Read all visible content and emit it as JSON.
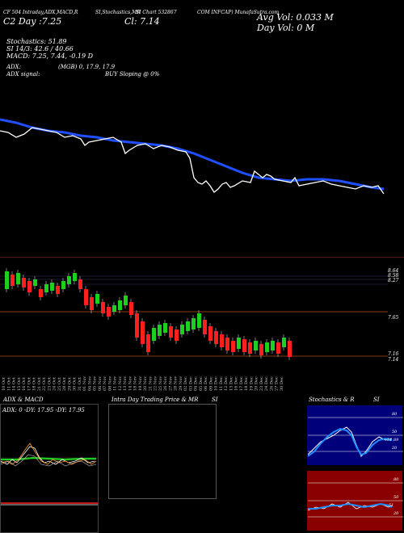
{
  "header": {
    "line1_a": "CF 504 Intraday,ADX,MACD,R",
    "line1_b": "SI,Stochastics,MR",
    "line1_c": "SI Chart 532867",
    "line1_d": "COM INFCAP) MunafaSutra.com",
    "line2_a": "C2 Day :7.25",
    "line2_b": "Cl: 7.14",
    "avg_vol": "Avg Vol: 0.033 M",
    "day_vol": "Day Vol: 0 M"
  },
  "indicators": {
    "stochastics": "Stochastics: 51.89",
    "si": "SI 14/3: 42.6 / 40.66",
    "macd": "MACD: 7.25, 7.44, -0.19 D",
    "adx": "ADX:",
    "adx_vals": "(MGB) 0, 17.9, 17.9",
    "adx_signal": "ADX signal:",
    "buy_selling": "BUY Sloping @ 0%"
  },
  "candle_price_labels": [
    "8.64",
    "8.58",
    "8.27",
    "7.65",
    "7.16",
    "7.14"
  ],
  "date_labels": [
    "10 Oct",
    "11 Oct",
    "14 Oct",
    "15 Oct",
    "16 Oct",
    "17 Oct",
    "18 Oct",
    "21 Oct",
    "22 Oct",
    "23 Oct",
    "24 Oct",
    "25 Oct",
    "28 Oct",
    "29 Oct",
    "30 Oct",
    "31 Oct",
    "01 Nov",
    "04 Nov",
    "05 Nov",
    "06 Nov",
    "07 Nov",
    "08 Nov",
    "11 Nov",
    "12 Nov",
    "13 Nov",
    "14 Nov",
    "18 Nov",
    "19 Nov",
    "20 Nov",
    "21 Nov",
    "22 Nov",
    "25 Nov",
    "26 Nov",
    "27 Nov",
    "28 Nov",
    "29 Nov",
    "02 Dec",
    "03 Dec",
    "04 Dec",
    "05 Dec",
    "06 Dec",
    "09 Dec",
    "10 Dec",
    "11 Dec",
    "12 Dec",
    "13 Dec",
    "16 Dec",
    "17 Dec",
    "18 Dec",
    "19 Dec",
    "20 Dec",
    "23 Dec",
    "24 Dec",
    "26 Dec",
    "27 Dec",
    "30 Dec"
  ],
  "bottom": {
    "adx_title": "ADX & MACD",
    "adx_vals": "ADX: 0  -DY: 17.95  -DY: 17.95",
    "intraday_title": "Intra Day Trading Price & MR",
    "si_title": "SI",
    "stoch_title": "Stochastics & R",
    "si_title2": "SI",
    "stoch_scale": [
      "80",
      "50",
      "20"
    ],
    "stoch_value": "51.89",
    "rsi_scale": [
      "80",
      "50",
      "20"
    ],
    "rsi_value": "51"
  },
  "colors": {
    "ema": "#1f4fff",
    "price": "#ffffff",
    "up": "#1fcf1f",
    "down": "#ff1f1f",
    "divider": "#8b3a1a",
    "stoch_bg": "#00007a",
    "rsi_bg": "#8a0000"
  }
}
